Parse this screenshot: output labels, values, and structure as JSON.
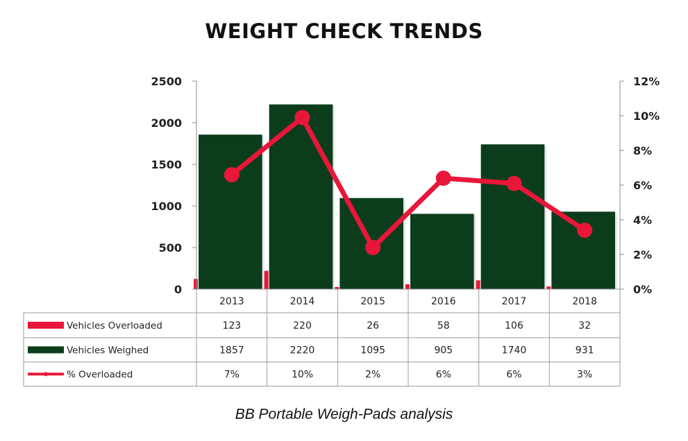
{
  "chart_data": {
    "type": "bar",
    "title": "WEIGHT CHECK TRENDS",
    "caption": "BB Portable Weigh-Pads analysis",
    "categories": [
      "2013",
      "2014",
      "2015",
      "2016",
      "2017",
      "2018"
    ],
    "y_left": {
      "ylim": [
        0,
        2500
      ],
      "ticks": [
        "2500",
        "2000",
        "1500",
        "1000",
        "500",
        "0"
      ]
    },
    "y_right": {
      "ylim": [
        0,
        12
      ],
      "ticks": [
        "12%",
        "10%",
        "8%",
        "6%",
        "4%",
        "2%",
        "0%"
      ]
    },
    "series": [
      {
        "name": "Vehicles Overloaded",
        "kind": "bar",
        "axis": "left",
        "color": "#e8173a",
        "values": [
          123,
          220,
          26,
          58,
          106,
          32
        ],
        "labels": [
          "123",
          "220",
          "26",
          "58",
          "106",
          "32"
        ]
      },
      {
        "name": "Vehicles Weighed",
        "kind": "bar",
        "axis": "left",
        "color": "#0b3d1c",
        "values": [
          1857,
          2220,
          1095,
          905,
          1740,
          931
        ],
        "labels": [
          "1857",
          "2220",
          "1095",
          "905",
          "1740",
          "931"
        ]
      },
      {
        "name": "% Overloaded",
        "kind": "line",
        "axis": "right",
        "color": "#e8173a",
        "values": [
          6.6,
          9.9,
          2.4,
          6.4,
          6.1,
          3.4
        ],
        "labels": [
          "7%",
          "10%",
          "2%",
          "6%",
          "6%",
          "3%"
        ]
      }
    ],
    "legend": "data-table-below"
  }
}
